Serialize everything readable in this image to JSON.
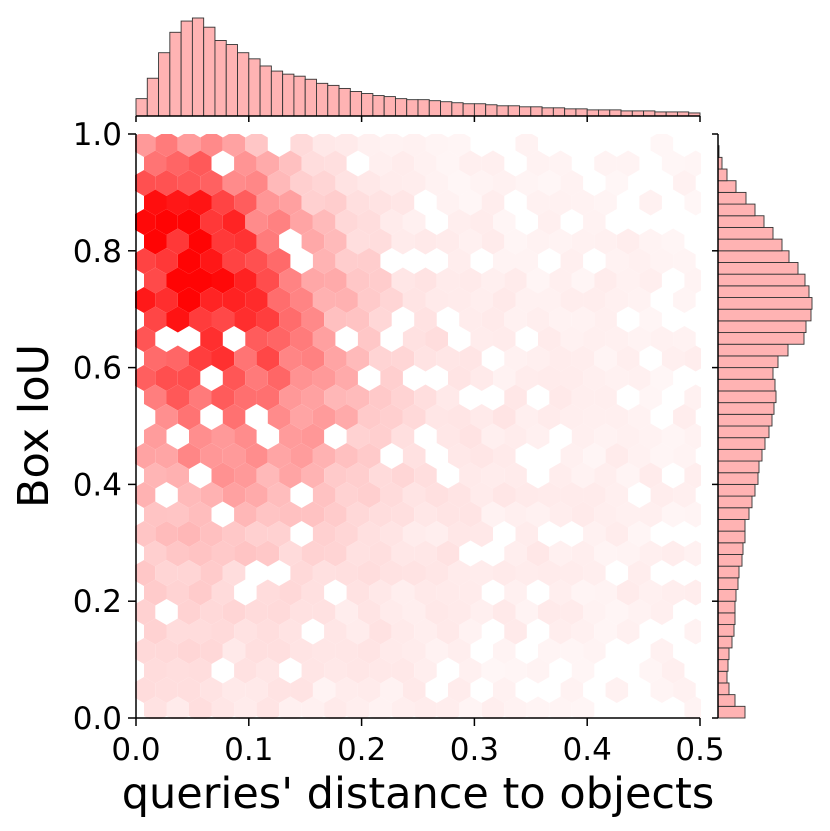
{
  "chart_data": {
    "type": "heatmap",
    "subtype": "hexbin-jointplot",
    "xlabel": "queries' distance to objects",
    "ylabel": "Box IoU",
    "xlim": [
      0.0,
      0.5
    ],
    "ylim": [
      0.0,
      1.0
    ],
    "xticks": [
      "0.0",
      "0.1",
      "0.2",
      "0.3",
      "0.4",
      "0.5"
    ],
    "yticks": [
      "0.0",
      "0.2",
      "0.4",
      "0.6",
      "0.8",
      "1.0"
    ],
    "grid": false,
    "legend": "none",
    "colormap": "Reds",
    "hex_color_max": "#ff0000",
    "marginal_fill": "#ffb3b3",
    "marginal_edge": "#333333",
    "density_peak": {
      "x": 0.04,
      "y": 0.82
    },
    "x_marginal_hist": {
      "bin_width": 0.01,
      "x_start": 0.0,
      "counts": [
        0.17,
        0.37,
        0.62,
        0.82,
        0.93,
        0.96,
        0.87,
        0.74,
        0.7,
        0.62,
        0.56,
        0.49,
        0.44,
        0.41,
        0.39,
        0.36,
        0.32,
        0.3,
        0.27,
        0.24,
        0.22,
        0.2,
        0.19,
        0.17,
        0.16,
        0.16,
        0.15,
        0.14,
        0.13,
        0.12,
        0.12,
        0.11,
        0.1,
        0.1,
        0.09,
        0.09,
        0.08,
        0.08,
        0.07,
        0.07,
        0.06,
        0.06,
        0.06,
        0.05,
        0.05,
        0.05,
        0.04,
        0.04,
        0.04,
        0.03
      ]
    },
    "y_marginal_hist": {
      "bin_width": 0.02,
      "y_start": 0.0,
      "counts": [
        0.27,
        0.17,
        0.11,
        0.09,
        0.1,
        0.11,
        0.14,
        0.16,
        0.17,
        0.17,
        0.18,
        0.2,
        0.21,
        0.24,
        0.25,
        0.27,
        0.27,
        0.31,
        0.34,
        0.37,
        0.4,
        0.41,
        0.44,
        0.47,
        0.51,
        0.54,
        0.56,
        0.58,
        0.57,
        0.55,
        0.6,
        0.7,
        0.86,
        0.88,
        0.93,
        0.94,
        0.91,
        0.87,
        0.8,
        0.71,
        0.64,
        0.55,
        0.46,
        0.37,
        0.28,
        0.18,
        0.09,
        0.04,
        0.01,
        0.0
      ]
    }
  }
}
